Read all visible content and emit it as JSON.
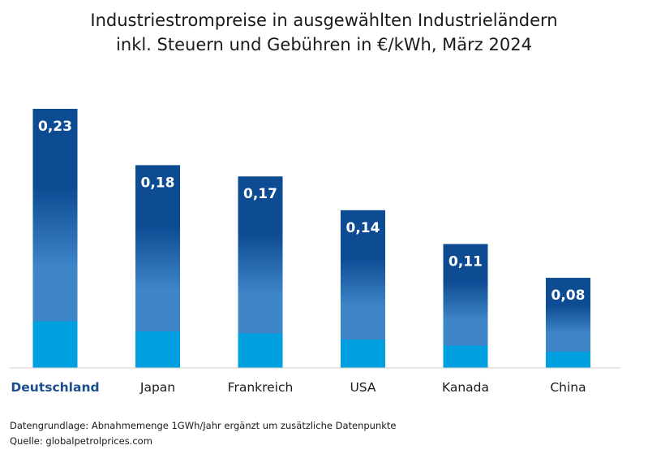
{
  "title_line1": "Industriestrompreise in ausgewählten Industrieländern",
  "title_line2": "inkl. Steuern und Gebühren in €/kWh, März 2024",
  "footer": {
    "note": "Datengrundlage: Abnahmemenge 1GWh/Jahr ergänzt um zusätzliche Datenpunkte",
    "source": "Quelle: globalpetrolprices.com"
  },
  "colors": {
    "bar_top": "#0d4b93",
    "bar_mid": "#3f86c9",
    "bar_bottom": "#009fe0",
    "highlight_label": "#1b4f8c",
    "label": "#1a1a1a",
    "axis": "#cccccc"
  },
  "chart_data": {
    "type": "bar",
    "categories": [
      "Deutschland",
      "Japan",
      "Frankreich",
      "USA",
      "Kanada",
      "China"
    ],
    "values": [
      0.23,
      0.18,
      0.17,
      0.14,
      0.11,
      0.08
    ],
    "value_labels": [
      "0,23",
      "0,18",
      "0,17",
      "0,14",
      "0,11",
      "0,08"
    ],
    "highlighted_category": "Deutschland",
    "ylim": [
      0,
      0.23
    ],
    "grid": false,
    "legend": "none"
  }
}
